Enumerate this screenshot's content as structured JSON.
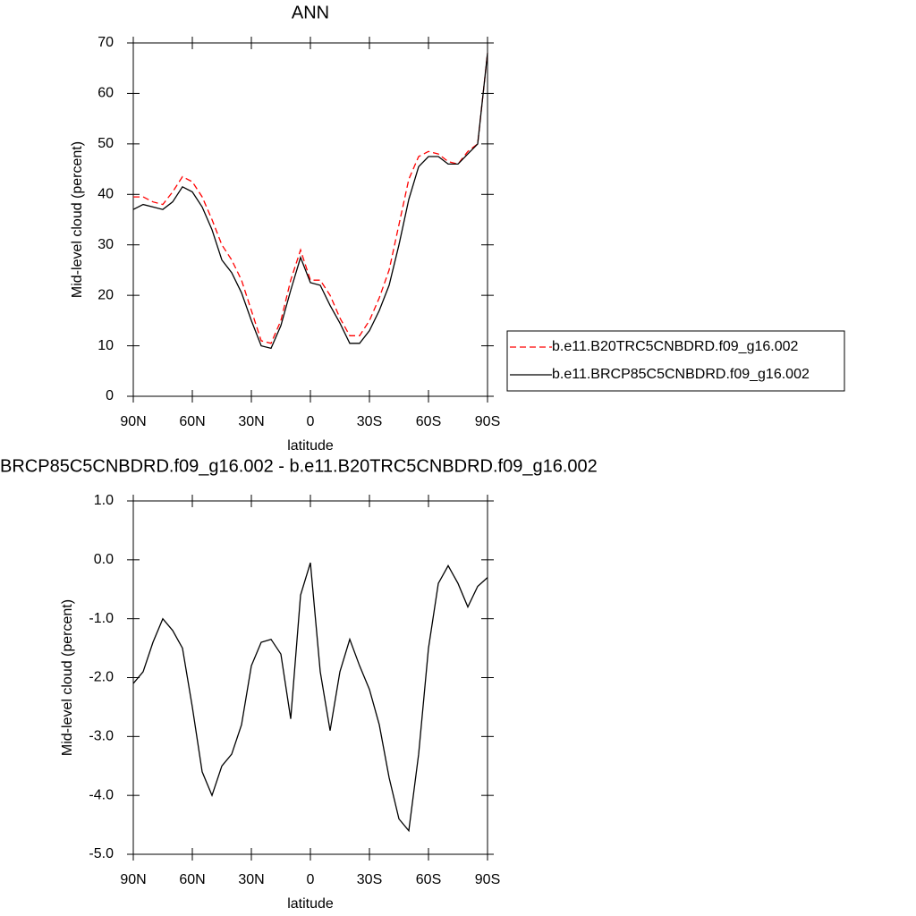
{
  "chart_data": [
    {
      "type": "line",
      "title": "ANN",
      "xlabel": "latitude",
      "ylabel": "Mid-level cloud (percent)",
      "x": [
        90,
        85,
        80,
        75,
        70,
        65,
        60,
        55,
        50,
        45,
        40,
        35,
        30,
        25,
        20,
        15,
        10,
        5,
        0,
        -5,
        -10,
        -15,
        -20,
        -25,
        -30,
        -35,
        -40,
        -45,
        -50,
        -55,
        -60,
        -65,
        -70,
        -75,
        -80,
        -85,
        -90
      ],
      "xlim": [
        90,
        -90
      ],
      "xticks": [
        {
          "value": 90,
          "label": "90N"
        },
        {
          "value": 60,
          "label": "60N"
        },
        {
          "value": 30,
          "label": "30N"
        },
        0,
        {
          "value": -30,
          "label": "30S"
        },
        {
          "value": -60,
          "label": "60S"
        },
        {
          "value": -90,
          "label": "90S"
        }
      ],
      "ylim": [
        0,
        70
      ],
      "yticks": [
        0,
        10,
        20,
        30,
        40,
        50,
        60,
        70
      ],
      "legend": "outside-right",
      "series": [
        {
          "name": "b.e11.B20TRC5CNBDRD.f09_g16.002",
          "color": "#ff0000",
          "dashed": true,
          "values": [
            39.5,
            39.5,
            38.5,
            38,
            40.5,
            43.5,
            42.5,
            39.5,
            35,
            30,
            27,
            23,
            17,
            11,
            10.5,
            15,
            23,
            29,
            23,
            23,
            20,
            15.5,
            12,
            12,
            15,
            19.5,
            25,
            34,
            43,
            47.5,
            48.5,
            48,
            46.5,
            46,
            48.5,
            50,
            68
          ]
        },
        {
          "name": "b.e11.BRCP85C5CNBDRD.f09_g16.002",
          "color": "#000000",
          "dashed": false,
          "values": [
            37,
            38,
            37.5,
            37,
            38.5,
            41.5,
            40.5,
            37.5,
            33,
            27,
            24.5,
            20.5,
            15,
            10,
            9.5,
            14,
            21,
            27.5,
            22.5,
            22,
            18,
            14.5,
            10.5,
            10.5,
            13,
            17,
            22,
            30,
            39,
            45.5,
            47.5,
            47.5,
            46,
            46,
            48,
            50,
            68
          ]
        }
      ]
    },
    {
      "type": "line",
      "title": "BRCP85C5CNBDRD.f09_g16.002 - b.e11.B20TRC5CNBDRD.f09_g16.002",
      "xlabel": "latitude",
      "ylabel": "Mid-level cloud (percent)",
      "x": [
        90,
        85,
        80,
        75,
        70,
        65,
        60,
        55,
        50,
        45,
        40,
        35,
        30,
        25,
        20,
        15,
        10,
        5,
        0,
        -5,
        -10,
        -15,
        -20,
        -25,
        -30,
        -35,
        -40,
        -45,
        -50,
        -55,
        -60,
        -65,
        -70,
        -75,
        -80,
        -85,
        -90
      ],
      "xlim": [
        90,
        -90
      ],
      "xticks": [
        {
          "value": 90,
          "label": "90N"
        },
        {
          "value": 60,
          "label": "60N"
        },
        {
          "value": 30,
          "label": "30N"
        },
        0,
        {
          "value": -30,
          "label": "30S"
        },
        {
          "value": -60,
          "label": "60S"
        },
        {
          "value": -90,
          "label": "90S"
        }
      ],
      "ylim": [
        -5,
        1
      ],
      "yticks": [
        {
          "value": 1,
          "label": "1.0"
        },
        {
          "value": 0,
          "label": "0.0"
        },
        {
          "value": -1,
          "label": "-1.0"
        },
        {
          "value": -2,
          "label": "-2.0"
        },
        {
          "value": -3,
          "label": "-3.0"
        },
        {
          "value": -4,
          "label": "-4.0"
        },
        {
          "value": -5,
          "label": "-5.0"
        }
      ],
      "series": [
        {
          "color": "#000000",
          "dashed": false,
          "values": [
            -2.1,
            -1.9,
            -1.4,
            -1.0,
            -1.2,
            -1.5,
            -2.5,
            -3.6,
            -4.0,
            -3.5,
            -3.3,
            -2.8,
            -1.8,
            -1.4,
            -1.35,
            -1.6,
            -2.7,
            -0.6,
            -0.05,
            -1.9,
            -2.9,
            -1.9,
            -1.35,
            -1.8,
            -2.2,
            -2.8,
            -3.7,
            -4.4,
            -4.6,
            -3.3,
            -1.5,
            -0.4,
            -0.1,
            -0.4,
            -0.8,
            -0.45,
            -0.3
          ]
        }
      ]
    }
  ]
}
